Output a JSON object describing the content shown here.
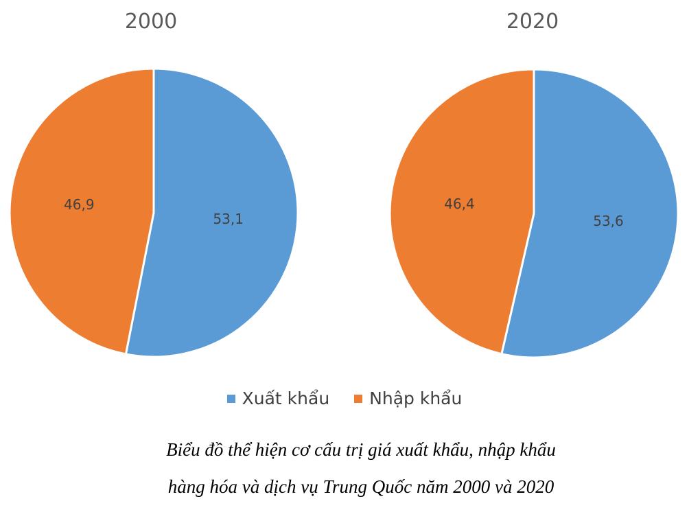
{
  "chart_data": [
    {
      "type": "pie",
      "title": "2000",
      "categories": [
        "Xuất khẩu",
        "Nhập khẩu"
      ],
      "values": [
        53.1,
        46.9
      ],
      "value_labels": [
        "53,1",
        "46,9"
      ],
      "colors": [
        "#5b9bd5",
        "#ed7d31"
      ]
    },
    {
      "type": "pie",
      "title": "2020",
      "categories": [
        "Xuất khẩu",
        "Nhập khẩu"
      ],
      "values": [
        53.6,
        46.4
      ],
      "value_labels": [
        "53,6",
        "46,4"
      ],
      "colors": [
        "#5b9bd5",
        "#ed7d31"
      ]
    }
  ],
  "legend": {
    "placement": "bottom",
    "items": [
      {
        "label": "Xuất khẩu",
        "color": "#5b9bd5"
      },
      {
        "label": "Nhập khẩu",
        "color": "#ed7d31"
      }
    ]
  },
  "caption": {
    "line1": "Biểu đồ thể hiện cơ cấu trị giá xuất khẩu, nhập khẩu",
    "line2": "hàng hóa và dịch vụ Trung Quốc năm 2000 và 2020"
  }
}
